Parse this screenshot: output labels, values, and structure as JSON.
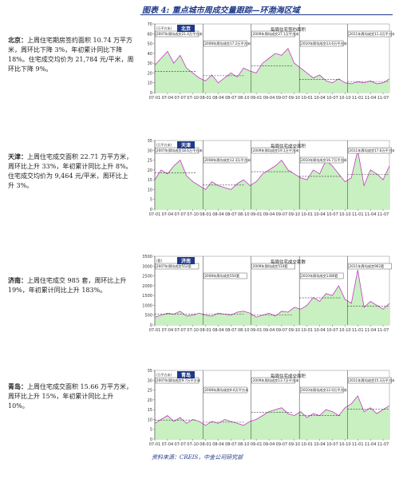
{
  "header": {
    "title": "图表 4: 重点城市周成交量跟踪—环渤海区域"
  },
  "sections": [
    {
      "city": "北京：",
      "text": "上周住宅期房签约面积 10.74 万平方米，周环比下降 3%，年初累计同比下降 18%。住宅成交均价为 21,784 元/平米，周环比下降 9%。",
      "chart": {
        "type": "area",
        "city_label": "北京",
        "title": "每周住宅签约面积",
        "unit": "(万平方米)",
        "color": "#c837c8",
        "fill_color": "#c8f0c0",
        "categories": [
          "07-01",
          null,
          "07-04",
          null,
          "07-07",
          null,
          "07-10",
          null,
          "08-01",
          null,
          "08-04",
          null,
          "08-07",
          null,
          "08-10",
          null,
          "09-01",
          null,
          "09-04",
          null,
          "09-07",
          null,
          "09-10",
          null,
          "10-01",
          null,
          "10-04",
          null,
          "10-07",
          null,
          "10-10",
          null,
          "11-01",
          null,
          "11-04",
          null,
          "11-07",
          null
        ],
        "values": [
          28,
          35,
          42,
          30,
          38,
          25,
          20,
          15,
          12,
          18,
          10,
          15,
          20,
          16,
          25,
          22,
          20,
          30,
          35,
          40,
          38,
          45,
          30,
          25,
          20,
          15,
          18,
          12,
          10,
          14,
          10,
          9,
          11,
          10,
          12,
          9,
          10,
          14
        ],
        "ylim": [
          0,
          70
        ],
        "yticks": [
          0,
          10,
          20,
          30,
          40,
          50,
          60,
          70
        ],
        "averages": [
          {
            "value": 21.4,
            "label": "2007年周均成交21.4万平方米"
          },
          {
            "value": 17.2,
            "label": "2008年周均成交17.2万平方米"
          },
          {
            "value": 27.1,
            "label": "2009年周均成交27.1万平方米"
          },
          {
            "value": 13.6,
            "label": "2010年周均成交13.6万平方米"
          },
          {
            "value": 11.3,
            "label": "2011年周均成交11.3万平方米"
          }
        ]
      }
    },
    {
      "city": "天津：",
      "text": "上周住宅成交面积 22.71 万平方米，周环比上升 33%，年初累计同比上升 8%。住宅成交均价为 9,464 元/平米，周环比上升 3%。",
      "chart": {
        "type": "area",
        "city_label": "天津",
        "title": "每周住宅成交面积",
        "unit": "(万平方米)",
        "color": "#c837c8",
        "fill_color": "#c8f0c0",
        "categories": [
          "07-01",
          null,
          "07-04",
          null,
          "07-07",
          null,
          "07-10",
          null,
          "08-01",
          null,
          "08-04",
          null,
          "08-07",
          null,
          "08-10",
          null,
          "09-01",
          null,
          "09-04",
          null,
          "09-07",
          null,
          "09-10",
          null,
          "10-01",
          null,
          "10-04",
          null,
          "10-07",
          null,
          "10-10",
          null,
          "11-01",
          null,
          "11-04",
          null,
          "11-07",
          null
        ],
        "values": [
          15,
          20,
          18,
          22,
          25,
          17,
          14,
          12,
          10,
          14,
          12,
          11,
          10,
          13,
          15,
          12,
          14,
          18,
          20,
          22,
          25,
          20,
          18,
          16,
          15,
          20,
          18,
          25,
          22,
          18,
          14,
          16,
          30,
          12,
          20,
          18,
          15,
          22
        ],
        "ylim": [
          0,
          35
        ],
        "yticks": [
          0,
          5,
          10,
          15,
          20,
          25,
          30,
          35
        ],
        "averages": [
          {
            "value": 18.6,
            "label": "2007年周均成交18.6万平方米"
          },
          {
            "value": 12.3,
            "label": "2008年周均成交12.3万平方米"
          },
          {
            "value": 19.1,
            "label": "2009年周均成交19.1万平方米"
          },
          {
            "value": 16.7,
            "label": "2010年周均成交16.7万平方米"
          },
          {
            "value": 17.6,
            "label": "2011年周均成交17.6万平方米"
          }
        ]
      }
    },
    {
      "city": "济南：",
      "text": "上周住宅成交 985 套，周环比上升 19%，年初累计同比上升 183%。",
      "chart": {
        "type": "area",
        "city_label": "济南",
        "title": "每周住宅成交套数",
        "unit": "(套)",
        "color": "#c837c8",
        "fill_color": "#c8f0c0",
        "categories": [
          "07-01",
          null,
          "07-04",
          null,
          "07-07",
          null,
          "07-10",
          null,
          "08-01",
          null,
          "08-04",
          null,
          "08-07",
          null,
          "08-10",
          null,
          "09-01",
          null,
          "09-04",
          null,
          "09-07",
          null,
          "09-10",
          null,
          "10-01",
          null,
          "10-04",
          null,
          "10-07",
          null,
          "10-10",
          null,
          "11-01",
          null,
          "11-04",
          null,
          "11-07",
          null
        ],
        "values": [
          400,
          500,
          600,
          550,
          700,
          450,
          500,
          600,
          500,
          450,
          600,
          550,
          500,
          650,
          700,
          600,
          400,
          500,
          600,
          450,
          700,
          650,
          900,
          800,
          1000,
          1400,
          1200,
          1600,
          1500,
          2000,
          1300,
          1100,
          2800,
          900,
          1200,
          1000,
          800,
          1100
        ],
        "ylim": [
          0,
          3500
        ],
        "yticks": [
          0,
          500,
          1000,
          1500,
          2000,
          2500,
          3000,
          3500
        ],
        "averages": [
          {
            "value": 552,
            "label": "2007年周均成交552套"
          },
          {
            "value": 554,
            "label": "2008年周均成交554套"
          },
          {
            "value": 514,
            "label": "2009年周均成交514套"
          },
          {
            "value": 1380,
            "label": "2010年周均成交1380套"
          },
          {
            "value": 962,
            "label": "2011年周均成交962套"
          }
        ]
      }
    },
    {
      "city": "青岛：",
      "text": "上周住宅成交面积 15.66 万平方米，周环比上升 15%，年初累计同比上升 10%。",
      "chart": {
        "type": "area",
        "city_label": "青岛",
        "title": "每周住宅成交面积",
        "unit": "(万平方米)",
        "color": "#c837c8",
        "fill_color": "#c8f0c0",
        "categories": [
          "07-01",
          null,
          "07-04",
          null,
          "07-07",
          null,
          "07-10",
          null,
          "08-01",
          null,
          "08-04",
          null,
          "08-07",
          null,
          "08-10",
          null,
          "09-01",
          null,
          "09-04",
          null,
          "09-07",
          null,
          "09-10",
          null,
          "10-01",
          null,
          "10-04",
          null,
          "10-07",
          null,
          "10-10",
          null,
          "11-01",
          null,
          "11-04",
          null,
          "11-07",
          null
        ],
        "values": [
          8,
          10,
          12,
          9,
          11,
          8,
          10,
          9,
          7,
          9,
          8,
          10,
          9,
          8,
          7,
          9,
          10,
          12,
          14,
          15,
          16,
          13,
          12,
          14,
          11,
          13,
          12,
          15,
          14,
          12,
          16,
          18,
          22,
          14,
          16,
          13,
          15,
          17
        ],
        "ylim": [
          0,
          35
        ],
        "yticks": [
          0,
          5,
          10,
          15,
          20,
          25,
          30,
          35
        ],
        "averages": [
          {
            "value": 9.7,
            "label": "2007年周均成交9.7万平方米"
          },
          {
            "value": 8.6,
            "label": "2008年周均成交8.6万平方米"
          },
          {
            "value": 13.7,
            "label": "2009年周均成交13.7万平方米"
          },
          {
            "value": 12.0,
            "label": "2010年周均成交12.0万平方米"
          },
          {
            "value": 15.3,
            "label": "2011年周均成交15.3万平方米"
          }
        ]
      }
    }
  ],
  "footer": {
    "source": "资料来源：CREIS，中金公司研究部"
  }
}
